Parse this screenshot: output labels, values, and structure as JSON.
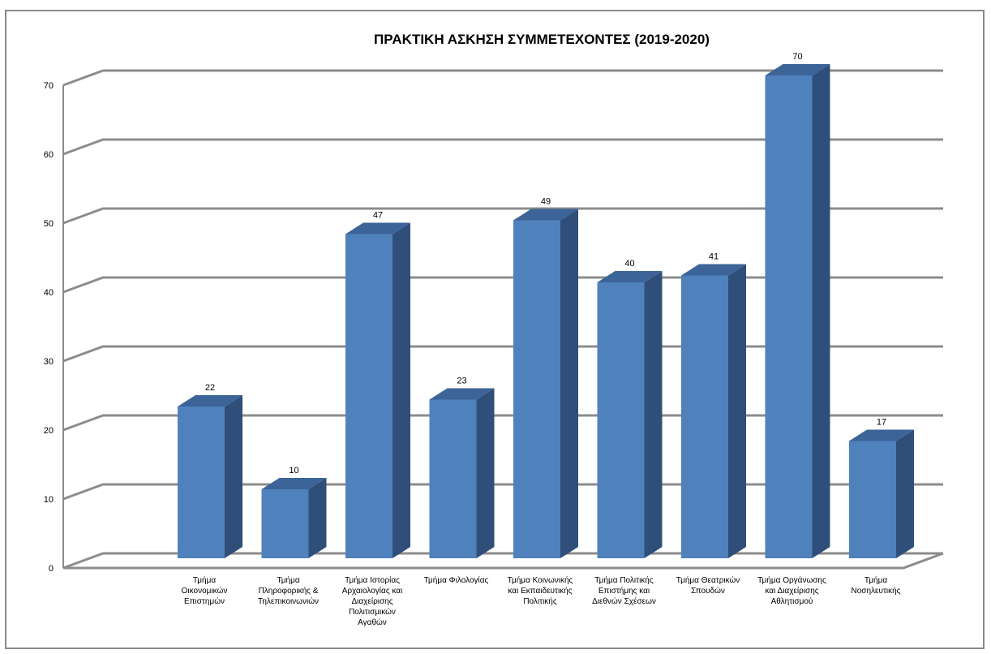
{
  "chart_data": {
    "type": "bar",
    "title": "ΠΡΑΚΤΙΚΗ ΑΣΚΗΣΗ  ΣΥΜΜΕΤΕΧΟΝΤΕΣ (2019-2020)",
    "xlabel": "",
    "ylabel": "",
    "ylim": [
      0,
      70
    ],
    "yticks": [
      "0",
      "10",
      "20",
      "30",
      "40",
      "50",
      "60",
      "70"
    ],
    "grid": true,
    "three_d": true,
    "categories": [
      "Τμήμα\nΟικονομικών\nΕπιστημών",
      "Τμήμα\nΠληροφορικής &\nΤηλεπικοινωνιών",
      "Τμήμα Ιστορίας\nΑρχαιολογίας και\nΔιαχείρισης\nΠολιτισμικών\nΑγαθών",
      "Τμήμα Φιλολογίας",
      "Τμήμα Κοινωνικής\nκαι Εκπαιδευτικής\nΠολιτικής",
      "Τμήμα Πολιτικής\nΕπιστήμης και\nΔιεθνών Σχέσεων",
      "Τμήμα Θεατρικών\nΣπουδών",
      "Τμήμα Οργάνωσης\nκαι Διαχείρισης\nΑθλητισμού",
      "Τμήμα\nΝοσηλευτικής"
    ],
    "values": [
      22,
      10,
      47,
      23,
      49,
      40,
      41,
      70,
      17
    ],
    "data_labels": [
      "22",
      "10",
      "47",
      "23",
      "49",
      "40",
      "41",
      "70",
      "17"
    ],
    "colors": {
      "bar_front": "#4f81bd",
      "bar_side": "#2f4f7a",
      "bar_top": "#3c6499",
      "grid": "#8c8c8c"
    }
  }
}
